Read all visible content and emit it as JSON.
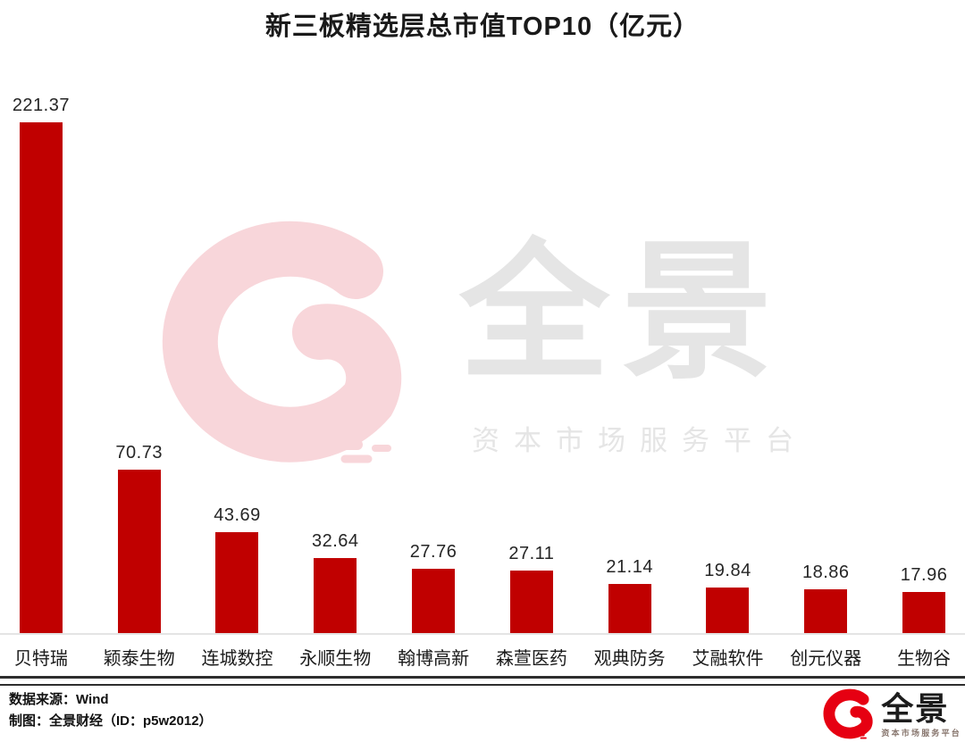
{
  "title": "新三板精选层总市值TOP10（亿元）",
  "chart_data": {
    "type": "bar",
    "title": "新三板精选层总市值TOP10（亿元）",
    "unit": "亿元",
    "categories": [
      "贝特瑞",
      "颖泰生物",
      "连城数控",
      "永顺生物",
      "翰博高新",
      "森萱医药",
      "观典防务",
      "艾融软件",
      "创元仪器",
      "生物谷"
    ],
    "values": [
      221.37,
      70.73,
      43.69,
      32.64,
      27.76,
      27.11,
      21.14,
      19.84,
      18.86,
      17.96
    ],
    "bar_color": "#c00000",
    "value_label_color": "#262626",
    "ylim": [
      0,
      230
    ],
    "grid": false,
    "legend": false,
    "value_labels_shown": true
  },
  "watermark": {
    "brand": "全景",
    "tagline": "资本市场服务平台",
    "swirl_color": "#f8d6da",
    "text_color": "#e5e5e5"
  },
  "footer": {
    "source": "数据来源：Wind",
    "credit": "制图：全景财经（ID：p5w2012）",
    "logo": {
      "brand": "全景",
      "tagline": "资本市场服务平台",
      "swirl_color": "#e60012",
      "brand_color": "#1c1c1c",
      "tagline_color": "#87756d"
    }
  }
}
